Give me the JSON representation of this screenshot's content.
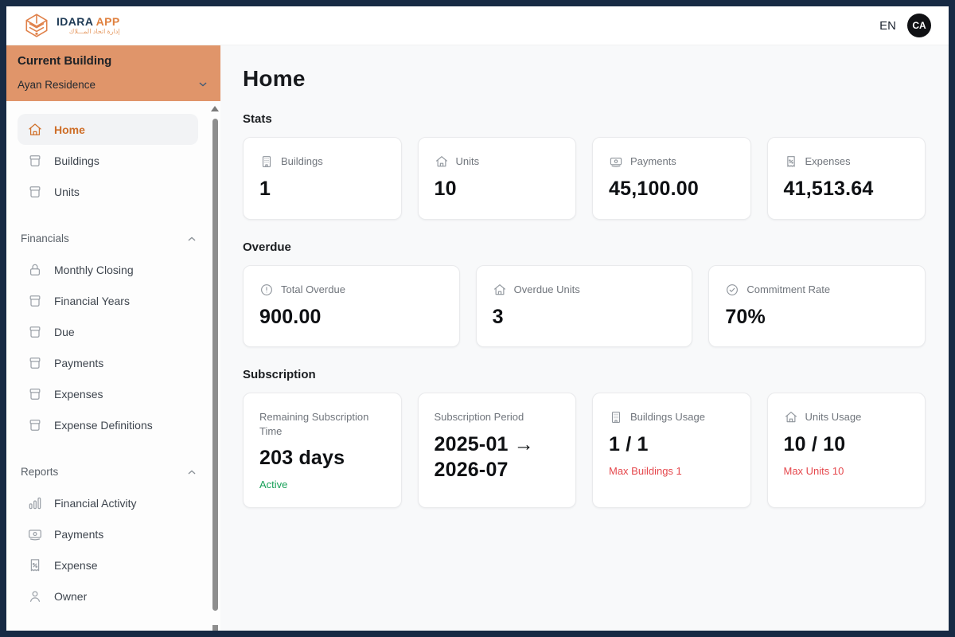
{
  "topbar": {
    "logo": {
      "title": "IDARA",
      "suffix": "APP",
      "subtitle": "إدارة اتحاد المـــلاك",
      "icon": "idara-logo-icon"
    },
    "language": "EN",
    "avatar": "CA"
  },
  "sidebar": {
    "banner": {
      "label": "Current Building",
      "value": "Ayan Residence",
      "chevron": "chevron-down-icon"
    },
    "groups": [
      {
        "title": null,
        "items": [
          {
            "label": "Home",
            "icon": "home-icon",
            "active": true
          },
          {
            "label": "Buildings",
            "icon": "archive-box-icon",
            "active": false
          },
          {
            "label": "Units",
            "icon": "archive-box-icon",
            "active": false
          }
        ]
      },
      {
        "title": "Financials",
        "chevron": "chevron-up-icon",
        "items": [
          {
            "label": "Monthly Closing",
            "icon": "lock-icon",
            "active": false
          },
          {
            "label": "Financial Years",
            "icon": "archive-box-icon",
            "active": false
          },
          {
            "label": "Due",
            "icon": "archive-box-icon",
            "active": false
          },
          {
            "label": "Payments",
            "icon": "archive-box-icon",
            "active": false
          },
          {
            "label": "Expenses",
            "icon": "archive-box-icon",
            "active": false
          },
          {
            "label": "Expense Definitions",
            "icon": "archive-box-icon",
            "active": false
          }
        ]
      },
      {
        "title": "Reports",
        "chevron": "chevron-up-icon",
        "items": [
          {
            "label": "Financial Activity",
            "icon": "bar-chart-icon",
            "active": false
          },
          {
            "label": "Payments",
            "icon": "banknote-icon",
            "active": false
          },
          {
            "label": "Expense",
            "icon": "receipt-percent-icon",
            "active": false
          },
          {
            "label": "Owner",
            "icon": "user-icon",
            "active": false
          }
        ]
      }
    ]
  },
  "main": {
    "title": "Home",
    "sections": [
      {
        "title": "Stats",
        "columns": 4,
        "tall": false,
        "cards": [
          {
            "icon": "building-icon",
            "label": "Buildings",
            "value": "1"
          },
          {
            "icon": "house-icon",
            "label": "Units",
            "value": "10"
          },
          {
            "icon": "banknote-icon",
            "label": "Payments",
            "value": "45,100.00"
          },
          {
            "icon": "receipt-percent-icon",
            "label": "Expenses",
            "value": "41,513.64"
          }
        ]
      },
      {
        "title": "Overdue",
        "columns": 3,
        "tall": false,
        "cards": [
          {
            "icon": "alert-circle-icon",
            "label": "Total Overdue",
            "value": "900.00"
          },
          {
            "icon": "house-icon",
            "label": "Overdue Units",
            "value": "3"
          },
          {
            "icon": "check-circle-icon",
            "label": "Commitment Rate",
            "value": "70%"
          }
        ]
      },
      {
        "title": "Subscription",
        "columns": 4,
        "tall": true,
        "cards": [
          {
            "label": "Remaining Subscription Time",
            "value": "203 days",
            "note": "Active",
            "note_color": "green"
          },
          {
            "label": "Subscription Period",
            "value": "2025-01 → 2026-07"
          },
          {
            "icon": "building-icon",
            "label": "Buildings Usage",
            "value": "1 / 1",
            "note": "Max Buildings 1",
            "note_color": "red"
          },
          {
            "icon": "house-icon",
            "label": "Units Usage",
            "value": "10 / 10",
            "note": "Max Units 10",
            "note_color": "red"
          }
        ]
      }
    ]
  },
  "colors": {
    "frame_navy": "#172A44",
    "banner_orange": "#E0956A",
    "accent_orange": "#CE6E28",
    "active_green": "#18A058",
    "limit_red": "#E5484D",
    "main_background": "#F8F9FA"
  }
}
